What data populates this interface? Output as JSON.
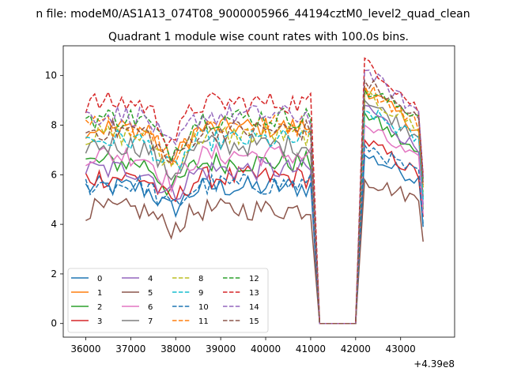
{
  "chart_data": {
    "type": "line",
    "suptitle": "n file: modeM0/AS1A13_074T08_9000005966_44194cztM0_level2_quad_clean",
    "title": "Quadrant 1 module wise count rates with 100.0s bins.",
    "xlabel": "",
    "ylabel": "",
    "offset_text": "+4.39e8",
    "xlim": [
      35500,
      44200
    ],
    "ylim": [
      -0.55,
      11.2
    ],
    "x_ticks": [
      36000,
      37000,
      38000,
      39000,
      40000,
      41000,
      42000,
      43000
    ],
    "x_tick_labels": [
      "36000",
      "37000",
      "38000",
      "39000",
      "40000",
      "41000",
      "42000",
      "43000"
    ],
    "y_ticks": [
      0,
      2,
      4,
      6,
      8,
      10
    ],
    "y_tick_labels": [
      "0",
      "2",
      "4",
      "6",
      "8",
      "10"
    ],
    "grid": false,
    "legend_position": "lower-left",
    "legend_columns": 4,
    "x_active_start": 36000,
    "x_active_end": 41000,
    "x_gap_start": 41200,
    "x_gap_end": 42000,
    "x_post_start": 42200,
    "x_post_end": 43500,
    "series": [
      {
        "name": "0",
        "color": "#1f77b4",
        "dash": "solid",
        "pre_mean": 5.5,
        "post_start": 6.8,
        "post_end": 5.8,
        "final": 3.9
      },
      {
        "name": "1",
        "color": "#ff7f0e",
        "dash": "solid",
        "pre_mean": 7.9,
        "post_start": 9.5,
        "post_end": 7.8,
        "final": 5.5
      },
      {
        "name": "2",
        "color": "#2ca02c",
        "dash": "solid",
        "pre_mean": 6.5,
        "post_start": 8.5,
        "post_end": 6.8,
        "final": 4.6
      },
      {
        "name": "3",
        "color": "#d62728",
        "dash": "solid",
        "pre_mean": 5.9,
        "post_start": 7.4,
        "post_end": 6.0,
        "final": 4.3
      },
      {
        "name": "4",
        "color": "#9467bd",
        "dash": "solid",
        "pre_mean": 6.2,
        "post_start": 8.8,
        "post_end": 7.0,
        "final": 4.8
      },
      {
        "name": "5",
        "color": "#8c564b",
        "dash": "solid",
        "pre_mean": 4.6,
        "post_start": 5.8,
        "post_end": 5.0,
        "final": 3.3
      },
      {
        "name": "6",
        "color": "#e377c2",
        "dash": "solid",
        "pre_mean": 6.8,
        "post_start": 8.0,
        "post_end": 6.5,
        "final": 4.4
      },
      {
        "name": "7",
        "color": "#7f7f7f",
        "dash": "solid",
        "pre_mean": 7.2,
        "post_start": 9.0,
        "post_end": 7.6,
        "final": 5.1
      },
      {
        "name": "8",
        "color": "#bcbd22",
        "dash": "dashed",
        "pre_mean": 7.6,
        "post_start": 9.2,
        "post_end": 7.9,
        "final": 5.3
      },
      {
        "name": "9",
        "color": "#17becf",
        "dash": "dashed",
        "pre_mean": 7.4,
        "post_start": 8.6,
        "post_end": 7.4,
        "final": 5.0
      },
      {
        "name": "10",
        "color": "#1f77b4",
        "dash": "dashed",
        "pre_mean": 5.6,
        "post_start": 7.2,
        "post_end": 6.0,
        "final": 4.0
      },
      {
        "name": "11",
        "color": "#ff7f0e",
        "dash": "dashed",
        "pre_mean": 8.0,
        "post_start": 9.6,
        "post_end": 8.0,
        "final": 5.6
      },
      {
        "name": "12",
        "color": "#2ca02c",
        "dash": "dashed",
        "pre_mean": 8.3,
        "post_start": 9.4,
        "post_end": 8.4,
        "final": 5.8
      },
      {
        "name": "13",
        "color": "#d62728",
        "dash": "dashed",
        "pre_mean": 8.9,
        "post_start": 10.7,
        "post_end": 8.6,
        "final": 6.0
      },
      {
        "name": "14",
        "color": "#9467bd",
        "dash": "dashed",
        "pre_mean": 8.4,
        "post_start": 10.2,
        "post_end": 8.5,
        "final": 5.9
      },
      {
        "name": "15",
        "color": "#8c564b",
        "dash": "dashed",
        "pre_mean": 7.8,
        "post_start": 9.8,
        "post_end": 8.2,
        "final": 5.6
      }
    ]
  }
}
